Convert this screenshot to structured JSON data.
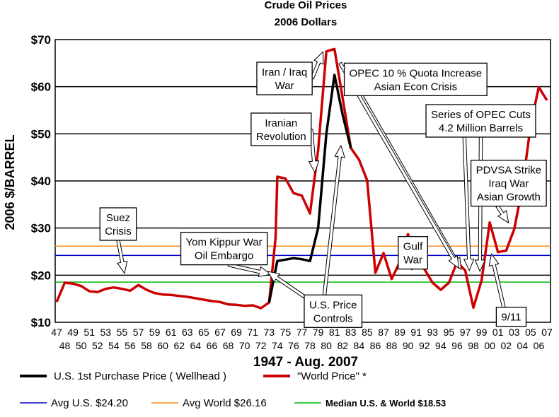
{
  "chart_data": {
    "type": "line",
    "title": "Crude Oil Prices",
    "subtitle": "2006 Dollars",
    "ylabel": "2006 $/BARREL",
    "xlabel": "1947 - Aug. 2007",
    "ylim": [
      10,
      70
    ],
    "yticks": [
      10,
      20,
      30,
      40,
      50,
      60,
      70
    ],
    "ytick_labels": [
      "$10",
      "$20",
      "$30",
      "$40",
      "$50",
      "$60",
      "$70"
    ],
    "x_range": [
      1947,
      2007
    ],
    "xticks_top": [
      "47",
      "49",
      "51",
      "53",
      "55",
      "57",
      "59",
      "61",
      "63",
      "65",
      "67",
      "69",
      "71",
      "73",
      "75",
      "77",
      "79",
      "81",
      "83",
      "85",
      "87",
      "89",
      "91",
      "93",
      "95",
      "97",
      "99",
      "01",
      "03",
      "05",
      "07"
    ],
    "xticks_bottom": [
      "48",
      "50",
      "52",
      "54",
      "56",
      "58",
      "60",
      "62",
      "64",
      "66",
      "68",
      "70",
      "72",
      "74",
      "76",
      "78",
      "80",
      "82",
      "84",
      "86",
      "88",
      "90",
      "92",
      "94",
      "96",
      "98",
      "00",
      "02",
      "04",
      "06"
    ],
    "series": [
      {
        "name": "\"World Price\" *",
        "color": "#cc0000",
        "x": [
          1947,
          1948,
          1949,
          1950,
          1951,
          1952,
          1953,
          1954,
          1955,
          1956,
          1957,
          1958,
          1959,
          1960,
          1961,
          1962,
          1963,
          1964,
          1965,
          1966,
          1967,
          1968,
          1969,
          1970,
          1971,
          1972,
          1973,
          1973.8,
          1974,
          1975,
          1976,
          1977,
          1978,
          1979,
          1980,
          1981,
          1982,
          1983,
          1984,
          1985,
          1986,
          1987,
          1988,
          1989,
          1990,
          1991,
          1992,
          1993,
          1994,
          1995,
          1996,
          1997,
          1998,
          1999,
          2000,
          2001,
          2002,
          2003,
          2004,
          2005,
          2006,
          2007
        ],
        "y": [
          14.3,
          18.4,
          18.2,
          17.7,
          16.6,
          16.4,
          17.1,
          17.4,
          17.1,
          16.7,
          17.9,
          16.9,
          16.2,
          15.9,
          15.8,
          15.6,
          15.4,
          15.1,
          14.8,
          14.5,
          14.3,
          13.8,
          13.7,
          13.5,
          13.6,
          13.0,
          14.2,
          28.0,
          40.9,
          40.5,
          37.4,
          36.9,
          33.1,
          46.5,
          67.5,
          68.0,
          57.5,
          47.0,
          44.5,
          40.1,
          20.5,
          24.7,
          19.2,
          22.8,
          28.7,
          22.5,
          21.3,
          18.4,
          16.9,
          18.4,
          22.8,
          21.0,
          13.1,
          18.9,
          31.2,
          24.9,
          25.2,
          29.8,
          38.8,
          51.8,
          59.9,
          57.1
        ]
      },
      {
        "name": "U.S. 1st Purchase Price ( Wellhead )",
        "color": "#000000",
        "x": [
          1973,
          1974,
          1975,
          1976,
          1977,
          1978,
          1979,
          1980,
          1981,
          1982,
          1983
        ],
        "y": [
          14.2,
          23.0,
          23.3,
          23.6,
          23.4,
          23.0,
          30.0,
          50.0,
          62.5,
          54.0,
          47.0
        ]
      }
    ],
    "reference_lines": [
      {
        "name": "Avg U.S. $24.20",
        "value": 24.2,
        "color": "#0000cc"
      },
      {
        "name": "Avg World $26.16",
        "value": 26.16,
        "color": "#ff8c1a"
      },
      {
        "name": "Median U.S. & World  $18.53",
        "value": 18.53,
        "color": "#00bb00"
      }
    ],
    "annotations": [
      {
        "lines": [
          "Suez",
          "Crisis"
        ],
        "box_year": 1952.3,
        "box_price": 34.3
      },
      {
        "lines": [
          "Yom Kippur War",
          "Oil Embargo"
        ],
        "box_year": 1962.2,
        "box_price": 29.1
      },
      {
        "lines": [
          "U.S. Price",
          "Controls"
        ],
        "box_year": 1977.3,
        "box_price": 15.8
      },
      {
        "lines": [
          "Iranian",
          "Revolution"
        ],
        "box_year": 1970.8,
        "box_price": 54.4
      },
      {
        "lines": [
          "Iran / Iraq",
          "War"
        ],
        "box_year": 1971.5,
        "box_price": 65.2
      },
      {
        "lines": [
          "OPEC 10 % Quota Increase",
          "Asian Econ Crisis"
        ],
        "box_year": 1982.2,
        "box_price": 65.0
      },
      {
        "lines": [
          "Series of OPEC Cuts",
          "4.2 Million Barrels"
        ],
        "box_year": 1992.2,
        "box_price": 56.2
      },
      {
        "lines": [
          "Gulf",
          "War"
        ],
        "box_year": 1988.8,
        "box_price": 28.2
      },
      {
        "lines": [
          "PDVSA Strike",
          "Iraq War",
          "Asian Growth"
        ],
        "box_year": 1997.7,
        "box_price": 44.4
      },
      {
        "lines": [
          "9/11"
        ],
        "box_year": 2000.8,
        "box_price": 13.2
      }
    ]
  },
  "legend": {
    "row1": [
      {
        "label": "U.S. 1st Purchase Price ( Wellhead )",
        "color": "#000000"
      },
      {
        "label": "\"World Price\" *",
        "color": "#cc0000"
      }
    ],
    "row2": [
      {
        "label": "Avg U.S. $24.20",
        "color": "#0000cc"
      },
      {
        "label": "Avg World $26.16",
        "color": "#ff8c1a"
      },
      {
        "label": "Median U.S. & World  $18.53",
        "color": "#00bb00"
      }
    ]
  }
}
